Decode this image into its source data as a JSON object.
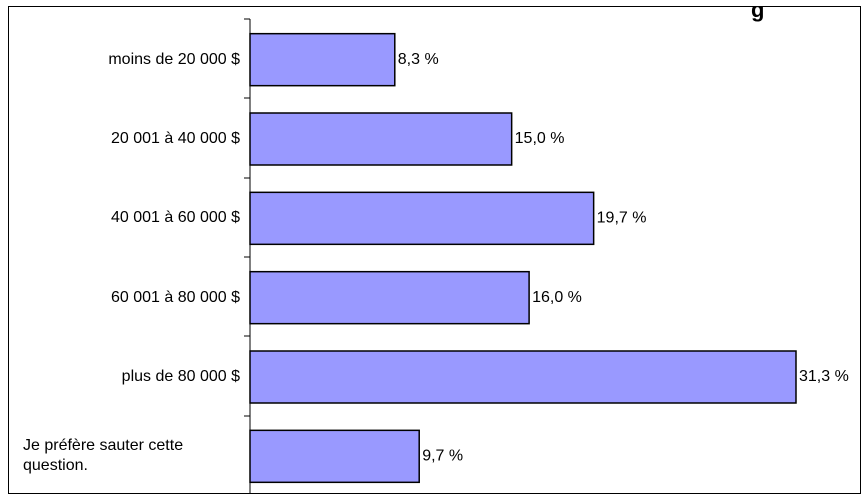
{
  "chart_data": {
    "type": "bar",
    "orientation": "horizontal",
    "title_fragment": "g",
    "categories": [
      "moins de 20 000 $",
      "20 001 à 40 000 $",
      "40 001 à 60 000 $",
      "60 001 à 80 000 $",
      "plus de 80 000 $",
      "Je préfère sauter cette question."
    ],
    "category_lines": [
      [
        "moins de 20 000 $"
      ],
      [
        "20 001 à 40 000 $"
      ],
      [
        "40 001 à 60 000 $"
      ],
      [
        "60 001 à 80 000 $"
      ],
      [
        "plus de 80 000 $"
      ],
      [
        "Je préfère sauter cette",
        "question."
      ]
    ],
    "values": [
      8.3,
      15.0,
      19.7,
      16.0,
      31.3,
      9.7
    ],
    "value_labels": [
      "8,3 %",
      "15,0 %",
      "19,7 %",
      "16,0 %",
      "31,3 %",
      "9,7 %"
    ],
    "xlim": [
      0,
      31.3
    ],
    "grid": false,
    "legend": "none",
    "bar_color": "#9999ff",
    "bar_stroke": "#000000"
  }
}
